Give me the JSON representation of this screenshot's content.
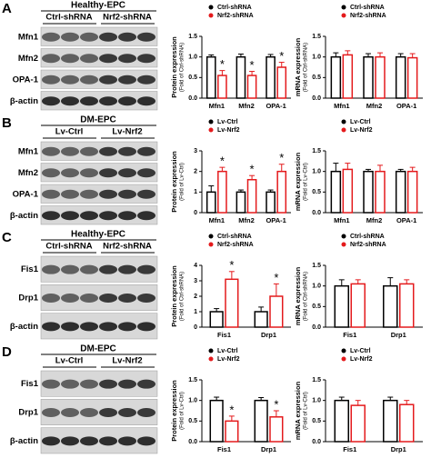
{
  "panels": [
    {
      "letter": "A",
      "group": "Healthy-EPC",
      "lanes": [
        "Ctrl-shRNA",
        "Nrf2-shRNA"
      ],
      "bands": [
        "Mfn1",
        "Mfn2",
        "OPA-1",
        "β-actin"
      ]
    },
    {
      "letter": "B",
      "group": "DM-EPC",
      "lanes": [
        "Lv-Ctrl",
        "Lv-Nrf2"
      ],
      "bands": [
        "Mfn1",
        "Mfn2",
        "OPA-1",
        "β-actin"
      ]
    },
    {
      "letter": "C",
      "group": "Healthy-EPC",
      "lanes": [
        "Ctrl-shRNA",
        "Nrf2-shRNA"
      ],
      "bands": [
        "Fis1",
        "Drp1",
        "β-actin"
      ]
    },
    {
      "letter": "D",
      "group": "DM-EPC",
      "lanes": [
        "Lv-Ctrl",
        "Lv-Nrf2"
      ],
      "bands": [
        "Fis1",
        "Drp1",
        "β-actin"
      ]
    }
  ],
  "chart_data": [
    {
      "type": "bar",
      "ylabel": [
        "Protein expression",
        "(Fold of Ctrl-shRNA)"
      ],
      "categories": [
        "Mfn1",
        "Mfn2",
        "OPA-1"
      ],
      "ylim": [
        0,
        1.5
      ],
      "yticks": [
        {
          "value": 0,
          "label": "0.0"
        },
        {
          "value": 0.5,
          "label": "0.5"
        },
        {
          "value": 1,
          "label": "1.0"
        },
        {
          "value": 1.5,
          "label": "1.5"
        }
      ],
      "series": [
        {
          "name": "Ctrl-shRNA",
          "color": "#000000",
          "values": [
            1.0,
            1.0,
            1.0
          ],
          "errors": [
            0.05,
            0.07,
            0.06
          ]
        },
        {
          "name": "Nrf2-shRNA",
          "color": "#e41a1c",
          "values": [
            0.55,
            0.55,
            0.75
          ],
          "errors": [
            0.12,
            0.1,
            0.12
          ],
          "markers": [
            "*",
            "*",
            "*"
          ]
        }
      ]
    },
    {
      "type": "bar",
      "ylabel": [
        "mRNA expression",
        "(Fold of Ctrl-shRNA)"
      ],
      "categories": [
        "Mfn1",
        "Mfn2",
        "OPA-1"
      ],
      "ylim": [
        0,
        1.5
      ],
      "yticks": [
        {
          "value": 0,
          "label": "0.0"
        },
        {
          "value": 0.5,
          "label": "0.5"
        },
        {
          "value": 1,
          "label": "1.0"
        },
        {
          "value": 1.5,
          "label": "1.5"
        }
      ],
      "series": [
        {
          "name": "Ctrl-shRNA",
          "color": "#000000",
          "values": [
            1.0,
            1.0,
            1.0
          ],
          "errors": [
            0.1,
            0.08,
            0.08
          ]
        },
        {
          "name": "Nrf2-shRNA",
          "color": "#e41a1c",
          "values": [
            1.05,
            1.0,
            0.98
          ],
          "errors": [
            0.1,
            0.1,
            0.1
          ]
        }
      ]
    },
    {
      "type": "bar",
      "ylabel": [
        "Protein expression",
        "(Fold of Lv-Ctrl)"
      ],
      "categories": [
        "Mfn1",
        "Mfn2",
        "OPA-1"
      ],
      "ylim": [
        0,
        3
      ],
      "yticks": [
        0,
        1,
        2,
        3
      ],
      "series": [
        {
          "name": "Lv-Ctrl",
          "color": "#000000",
          "values": [
            1.0,
            1.0,
            1.0
          ],
          "errors": [
            0.3,
            0.1,
            0.1
          ]
        },
        {
          "name": "Lv-Nrf2",
          "color": "#e41a1c",
          "values": [
            2.0,
            1.6,
            2.0
          ],
          "errors": [
            0.2,
            0.2,
            0.35
          ],
          "markers": [
            "*",
            "*",
            "*"
          ]
        }
      ]
    },
    {
      "type": "bar",
      "ylabel": [
        "mRNA expression",
        "(Fold of Lv-Ctrl)"
      ],
      "categories": [
        "Mfn1",
        "Mfn2",
        "OPA-1"
      ],
      "ylim": [
        0,
        1.5
      ],
      "yticks": [
        {
          "value": 0,
          "label": "0.0"
        },
        {
          "value": 0.5,
          "label": "0.5"
        },
        {
          "value": 1,
          "label": "1.0"
        },
        {
          "value": 1.5,
          "label": "1.5"
        }
      ],
      "series": [
        {
          "name": "Lv-Ctrl",
          "color": "#000000",
          "values": [
            1.0,
            1.0,
            1.0
          ],
          "errors": [
            0.2,
            0.05,
            0.05
          ]
        },
        {
          "name": "Lv-Nrf2",
          "color": "#e41a1c",
          "values": [
            1.05,
            1.0,
            1.0
          ],
          "errors": [
            0.15,
            0.15,
            0.1
          ]
        }
      ]
    },
    {
      "type": "bar",
      "ylabel": [
        "Protein expression",
        "(Fold of Ctrl-shRNA)"
      ],
      "categories": [
        "Fis1",
        "Drp1"
      ],
      "ylim": [
        0,
        4
      ],
      "yticks": [
        0,
        1,
        2,
        3,
        4
      ],
      "series": [
        {
          "name": "Ctrl-shRNA",
          "color": "#000000",
          "values": [
            1.0,
            1.0
          ],
          "errors": [
            0.2,
            0.3
          ]
        },
        {
          "name": "Nrf2-shRNA",
          "color": "#e41a1c",
          "values": [
            3.1,
            2.0
          ],
          "errors": [
            0.5,
            0.8
          ],
          "markers": [
            "*",
            "*"
          ]
        }
      ]
    },
    {
      "type": "bar",
      "ylabel": [
        "mRNA expression",
        "(Fold of Ctrl-shRNA)"
      ],
      "categories": [
        "Fis1",
        "Drp1"
      ],
      "ylim": [
        0,
        1.5
      ],
      "yticks": [
        {
          "value": 0,
          "label": "0.0"
        },
        {
          "value": 0.5,
          "label": "0.5"
        },
        {
          "value": 1,
          "label": "1.0"
        },
        {
          "value": 1.5,
          "label": "1.5"
        }
      ],
      "series": [
        {
          "name": "Ctrl-shRNA",
          "color": "#000000",
          "values": [
            1.0,
            1.0
          ],
          "errors": [
            0.15,
            0.2
          ]
        },
        {
          "name": "Nrf2-shRNA",
          "color": "#e41a1c",
          "values": [
            1.05,
            1.05
          ],
          "errors": [
            0.1,
            0.1
          ]
        }
      ]
    },
    {
      "type": "bar",
      "ylabel": [
        "Protein expression",
        "(Fold of Lv-Ctrl)"
      ],
      "categories": [
        "Fis1",
        "Drp1"
      ],
      "ylim": [
        0,
        1.5
      ],
      "yticks": [
        {
          "value": 0,
          "label": "0.0"
        },
        {
          "value": 0.5,
          "label": "0.5"
        },
        {
          "value": 1,
          "label": "1.0"
        },
        {
          "value": 1.5,
          "label": "1.5"
        }
      ],
      "series": [
        {
          "name": "Lv-Ctrl",
          "color": "#000000",
          "values": [
            1.0,
            1.0
          ],
          "errors": [
            0.08,
            0.07
          ]
        },
        {
          "name": "Lv-Nrf2",
          "color": "#e41a1c",
          "values": [
            0.5,
            0.6
          ],
          "errors": [
            0.12,
            0.15
          ],
          "markers": [
            "*",
            "*"
          ]
        }
      ]
    },
    {
      "type": "bar",
      "ylabel": [
        "mRNA expression",
        "(Fold of Lv-Ctrl)"
      ],
      "categories": [
        "Fis1",
        "Drp1"
      ],
      "ylim": [
        0,
        1.5
      ],
      "yticks": [
        {
          "value": 0,
          "label": "0.0"
        },
        {
          "value": 0.5,
          "label": "0.5"
        },
        {
          "value": 1,
          "label": "1.0"
        },
        {
          "value": 1.5,
          "label": "1.5"
        }
      ],
      "series": [
        {
          "name": "Lv-Ctrl",
          "color": "#000000",
          "values": [
            1.0,
            1.0
          ],
          "errors": [
            0.08,
            0.08
          ]
        },
        {
          "name": "Lv-Nrf2",
          "color": "#e41a1c",
          "values": [
            0.88,
            0.9
          ],
          "errors": [
            0.12,
            0.1
          ]
        }
      ]
    }
  ]
}
